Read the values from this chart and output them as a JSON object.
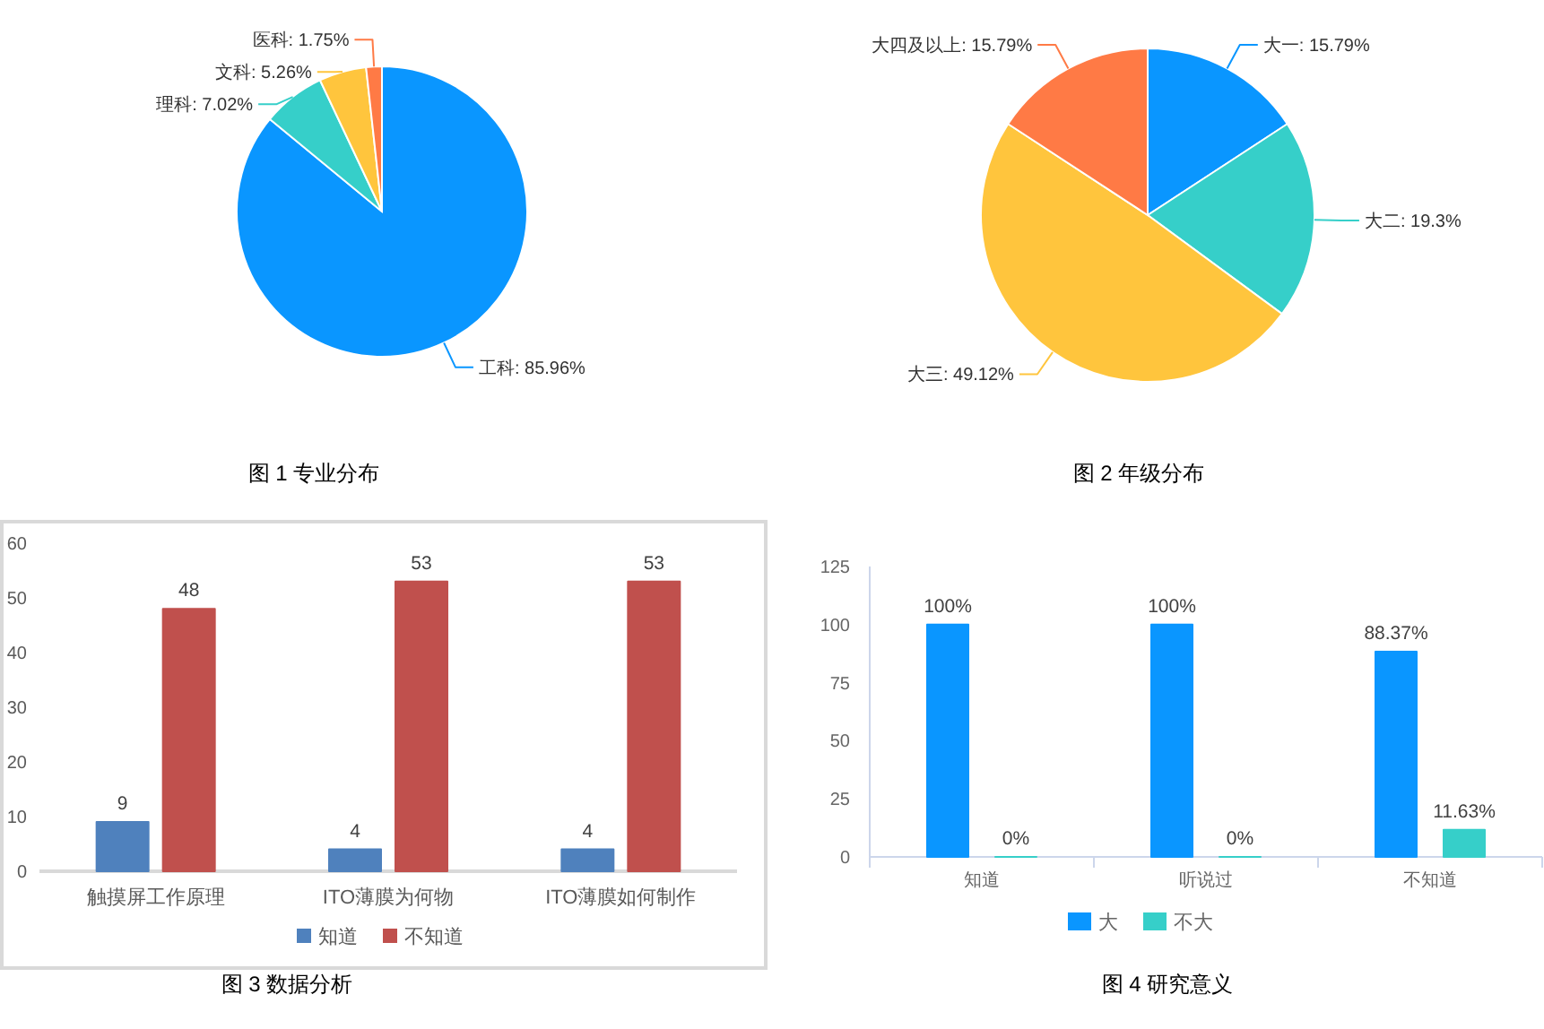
{
  "chart_data": [
    {
      "type": "pie",
      "title": "图 1 专业分布",
      "categories": [
        "工科",
        "理科",
        "文科",
        "医科"
      ],
      "values": [
        85.96,
        7.02,
        5.26,
        1.75
      ],
      "colors": [
        "#0a96ff",
        "#36cfc9",
        "#ffc53d",
        "#ff7a45"
      ],
      "value_labels": [
        "85.96%",
        "7.02%",
        "5.26%",
        "1.75%"
      ]
    },
    {
      "type": "pie",
      "title": "图 2 年级分布",
      "categories": [
        "大一",
        "大二",
        "大三",
        "大四及以上"
      ],
      "values": [
        15.79,
        19.3,
        49.12,
        15.79
      ],
      "colors": [
        "#0a96ff",
        "#36cfc9",
        "#ffc53d",
        "#ff7a45"
      ],
      "value_labels": [
        "15.79%",
        "19.3%",
        "49.12%",
        "15.79%"
      ]
    },
    {
      "type": "bar",
      "title": "图 3 数据分析",
      "categories": [
        "触摸屏工作原理",
        "ITO薄膜为何物",
        "ITO薄膜如何制作"
      ],
      "series": [
        {
          "name": "知道",
          "color": "#4f81bd",
          "values": [
            9,
            4,
            4
          ]
        },
        {
          "name": "不知道",
          "color": "#c0504d",
          "values": [
            48,
            53,
            53
          ]
        }
      ],
      "ylim": [
        0,
        60
      ],
      "yticks": [
        0,
        10,
        20,
        30,
        40,
        50,
        60
      ],
      "data_labels": true,
      "legend": "bottom"
    },
    {
      "type": "bar",
      "title": "图 4 研究意义",
      "categories": [
        "知道",
        "听说过",
        "不知道"
      ],
      "series": [
        {
          "name": "大",
          "color": "#0a96ff",
          "values": [
            100,
            100,
            88.37
          ],
          "value_labels": [
            "100%",
            "100%",
            "88.37%"
          ]
        },
        {
          "name": "不大",
          "color": "#36cfc9",
          "values": [
            0,
            0,
            11.63
          ],
          "value_labels": [
            "0%",
            "0%",
            "11.63%"
          ]
        }
      ],
      "ylim": [
        0,
        125
      ],
      "yticks": [
        0,
        25,
        50,
        75,
        100,
        125
      ],
      "legend": "bottom"
    }
  ]
}
